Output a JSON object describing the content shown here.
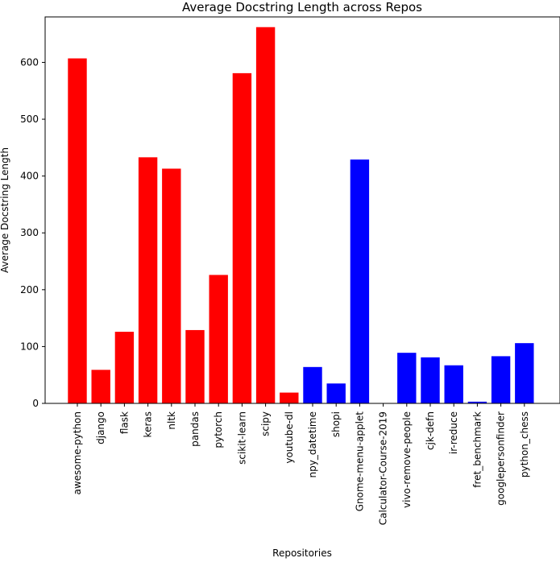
{
  "chart_data": {
    "type": "bar",
    "title": "Average Docstring Length across Repos",
    "xlabel": "Repositories",
    "ylabel": "Average Docstring Length",
    "ylim": [
      0,
      680
    ],
    "yticks": [
      0,
      100,
      200,
      300,
      400,
      500,
      600
    ],
    "grid": false,
    "categories": [
      "awesome-python",
      "django",
      "flask",
      "keras",
      "nltk",
      "pandas",
      "pytorch",
      "scikit-learn",
      "scipy",
      "youtube-dl",
      "npy_datetime",
      "shopi",
      "Gnome-menu-applet",
      "Calculator-Course-2019",
      "vivo-remove-people",
      "cjk-defn",
      "ir-reduce",
      "fret_benchmark",
      "googlepersonfinder",
      "python_chess"
    ],
    "values": [
      607,
      59,
      126,
      433,
      413,
      129,
      226,
      581,
      662,
      19,
      64,
      35,
      429,
      0,
      89,
      81,
      67,
      3,
      83,
      106
    ],
    "bar_colors": [
      "#ff0000",
      "#ff0000",
      "#ff0000",
      "#ff0000",
      "#ff0000",
      "#ff0000",
      "#ff0000",
      "#ff0000",
      "#ff0000",
      "#ff0000",
      "#0000ff",
      "#0000ff",
      "#0000ff",
      "#0000ff",
      "#0000ff",
      "#0000ff",
      "#0000ff",
      "#0000ff",
      "#0000ff",
      "#0000ff"
    ]
  }
}
